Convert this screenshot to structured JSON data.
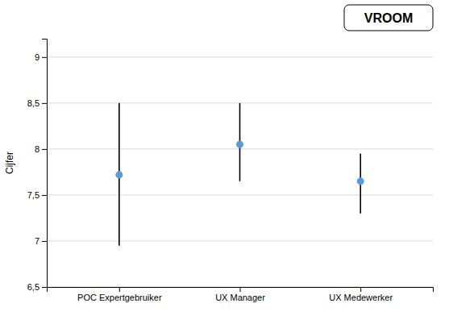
{
  "chart_data": {
    "type": "errorbar",
    "categories": [
      "POC Expertgebruiker",
      "UX Manager",
      "UX Medewerker"
    ],
    "values": [
      7.72,
      8.05,
      7.65
    ],
    "lower": [
      6.95,
      7.65,
      7.3
    ],
    "upper": [
      8.5,
      8.5,
      7.95
    ],
    "color": "#5B9BD5",
    "ylabel": "Cijfer",
    "ylim": [
      6.5,
      9.2
    ],
    "yticks": [
      {
        "value": 6.5,
        "label": "6,5"
      },
      7,
      {
        "value": 7.5,
        "label": "7,5"
      },
      8,
      {
        "value": 8.5,
        "label": "8,5"
      },
      9
    ],
    "grid": true,
    "annotations": [
      "VROOM"
    ]
  }
}
